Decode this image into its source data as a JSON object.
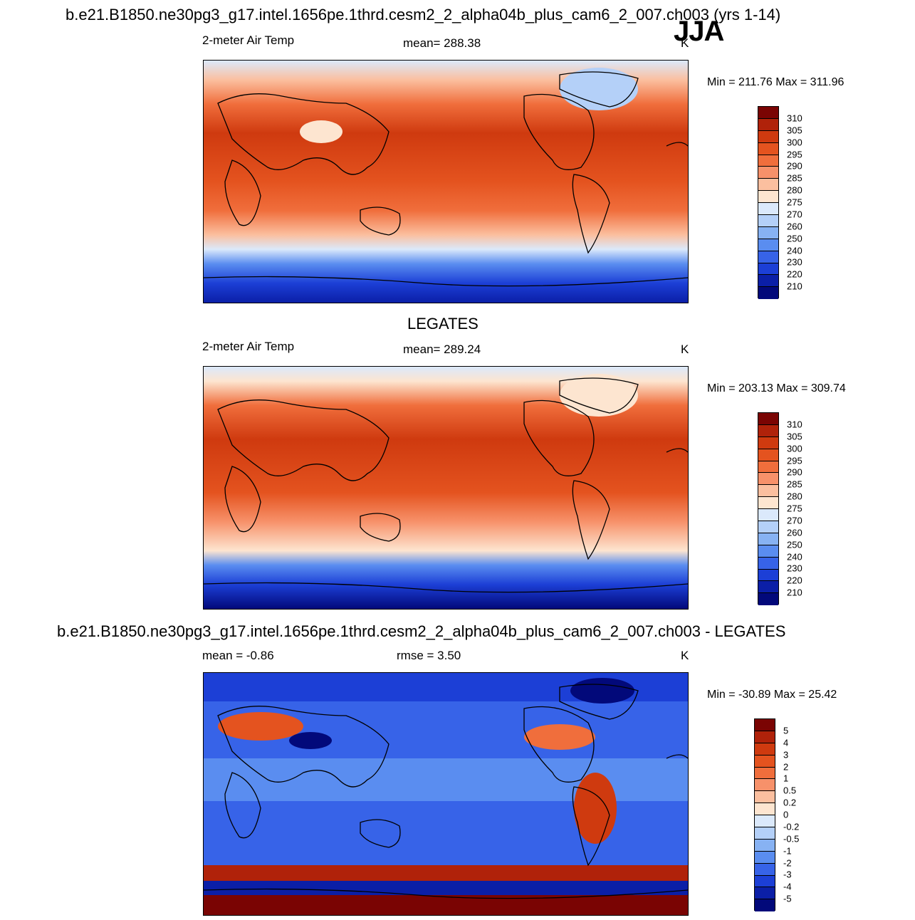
{
  "season": "JJA",
  "panels": [
    {
      "title": "b.e21.B1850.ne30pg3_g17.intel.1656pe.1thrd.cesm2_2_alpha04b_plus_cam6_2_007.ch003 (yrs 1-14)",
      "left_label": "2-meter Air Temp",
      "center_label": "mean= 288.38",
      "unit": "K",
      "minmax": "Min = 211.76 Max = 311.96",
      "colorbar": {
        "labels": [
          "310",
          "305",
          "300",
          "295",
          "290",
          "285",
          "280",
          "275",
          "270",
          "260",
          "250",
          "240",
          "230",
          "220",
          "210"
        ],
        "colors": [
          "#7a0403",
          "#b0220a",
          "#cf3a0f",
          "#e4531f",
          "#f06e3c",
          "#f7916a",
          "#fbbf9f",
          "#fde5d0",
          "#dbe9fb",
          "#b4d0f8",
          "#87b2f3",
          "#5a8df0",
          "#3763e8",
          "#1c3fd6",
          "#0b1fa7",
          "#02097a"
        ]
      }
    },
    {
      "title": "LEGATES",
      "left_label": "2-meter Air Temp",
      "center_label": "mean= 289.24",
      "unit": "K",
      "minmax": "Min = 203.13 Max = 309.74",
      "colorbar": {
        "labels": [
          "310",
          "305",
          "300",
          "295",
          "290",
          "285",
          "280",
          "275",
          "270",
          "260",
          "250",
          "240",
          "230",
          "220",
          "210"
        ],
        "colors": [
          "#7a0403",
          "#b0220a",
          "#cf3a0f",
          "#e4531f",
          "#f06e3c",
          "#f7916a",
          "#fbbf9f",
          "#fde5d0",
          "#dbe9fb",
          "#b4d0f8",
          "#87b2f3",
          "#5a8df0",
          "#3763e8",
          "#1c3fd6",
          "#0b1fa7",
          "#02097a"
        ]
      }
    },
    {
      "title": "b.e21.B1850.ne30pg3_g17.intel.1656pe.1thrd.cesm2_2_alpha04b_plus_cam6_2_007.ch003 - LEGATES",
      "left_label": "mean =  -0.86",
      "center_label": "rmse =   3.50",
      "unit": "K",
      "minmax": "Min = -30.89 Max =  25.42",
      "colorbar": {
        "labels": [
          "5",
          "4",
          "3",
          "2",
          "1",
          "0.5",
          "0.2",
          "0",
          "-0.2",
          "-0.5",
          "-1",
          "-2",
          "-3",
          "-4",
          "-5"
        ],
        "colors": [
          "#7a0403",
          "#b0220a",
          "#cf3a0f",
          "#e4531f",
          "#f06e3c",
          "#f7916a",
          "#fbbf9f",
          "#fde5d0",
          "#dbe9fb",
          "#b4d0f8",
          "#87b2f3",
          "#5a8df0",
          "#3763e8",
          "#1c3fd6",
          "#0b1fa7",
          "#02097a"
        ]
      }
    }
  ]
}
